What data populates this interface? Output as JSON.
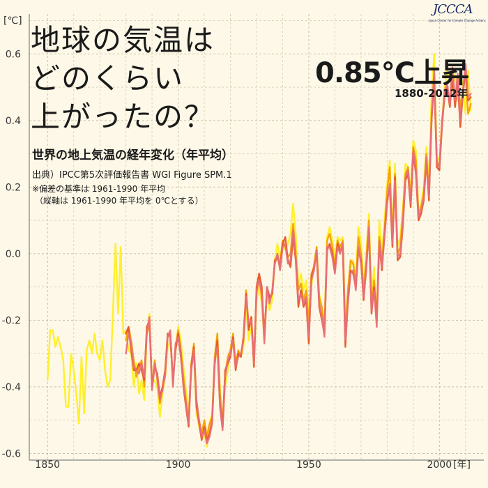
{
  "logo": {
    "text": "JCCCA",
    "sub": "Japan Center for Climate Change Actions"
  },
  "title_lines": [
    "地球の気温は",
    "どのくらい",
    "上がったの？"
  ],
  "headline": "0.85°C上昇",
  "headline_sub": "1880-2012年",
  "subtitle": "世界の地上気温の経年変化（年平均）",
  "source": "出典）IPCC第5次評価報告書 WGI Figure SPM.1",
  "note1": "※偏差の基準は 1961-1990 年平均",
  "note2": "（縦軸は 1961-1990 年平均を 0℃とする）",
  "chart_data": {
    "type": "line",
    "ylabel": "[℃]",
    "xlabel": "[年]",
    "xlim": [
      1843,
      2017
    ],
    "ylim": [
      -0.62,
      0.72
    ],
    "xticks": [
      1850,
      1900,
      1950,
      2000
    ],
    "yticks": [
      -0.6,
      -0.4,
      -0.2,
      0.0,
      0.2,
      0.4,
      0.6
    ],
    "grid": true,
    "colors": [
      "#ffee22",
      "#f5a000",
      "#e85428",
      "#e77079"
    ],
    "series": [
      {
        "color": "#ffee22",
        "x": [
          1850,
          1851,
          1852,
          1853,
          1854,
          1855,
          1856,
          1857,
          1858,
          1859,
          1860,
          1861,
          1862,
          1863,
          1864,
          1865,
          1866,
          1867,
          1868,
          1869,
          1870,
          1871,
          1872,
          1873,
          1874,
          1875,
          1876,
          1877,
          1878,
          1879,
          1880,
          1881,
          1882,
          1883,
          1884,
          1885,
          1886,
          1887,
          1888,
          1889,
          1890,
          1891,
          1892,
          1893,
          1894,
          1895,
          1896,
          1897,
          1898,
          1899,
          1900,
          1901,
          1902,
          1903,
          1904,
          1905,
          1906,
          1907,
          1908,
          1909,
          1910,
          1911,
          1912,
          1913,
          1914,
          1915,
          1916,
          1917,
          1918,
          1919,
          1920,
          1921,
          1922,
          1923,
          1924,
          1925,
          1926,
          1927,
          1928,
          1929,
          1930,
          1931,
          1932,
          1933,
          1934,
          1935,
          1936,
          1937,
          1938,
          1939,
          1940,
          1941,
          1942,
          1943,
          1944,
          1945,
          1946,
          1947,
          1948,
          1949,
          1950,
          1951,
          1952,
          1953,
          1954,
          1955,
          1956,
          1957,
          1958,
          1959,
          1960,
          1961,
          1962,
          1963,
          1964,
          1965,
          1966,
          1967,
          1968,
          1969,
          1970,
          1971,
          1972,
          1973,
          1974,
          1975,
          1976,
          1977,
          1978,
          1979,
          1980,
          1981,
          1982,
          1983,
          1984,
          1985,
          1986,
          1987,
          1988,
          1989,
          1990,
          1991,
          1992,
          1993,
          1994,
          1995,
          1996,
          1997,
          1998,
          1999,
          2000,
          2001,
          2002,
          2003,
          2004,
          2005,
          2006,
          2007,
          2008,
          2009,
          2010,
          2011,
          2012
        ],
        "values": [
          -0.38,
          -0.23,
          -0.23,
          -0.28,
          -0.25,
          -0.28,
          -0.32,
          -0.46,
          -0.46,
          -0.3,
          -0.35,
          -0.42,
          -0.51,
          -0.31,
          -0.48,
          -0.29,
          -0.26,
          -0.3,
          -0.24,
          -0.3,
          -0.32,
          -0.26,
          -0.35,
          -0.4,
          -0.38,
          -0.18,
          0.03,
          -0.18,
          0.02,
          -0.24,
          -0.23,
          -0.29,
          -0.3,
          -0.4,
          -0.33,
          -0.42,
          -0.38,
          -0.44,
          -0.24,
          -0.18,
          -0.39,
          -0.38,
          -0.4,
          -0.49,
          -0.42,
          -0.37,
          -0.28,
          -0.26,
          -0.38,
          -0.29,
          -0.22,
          -0.26,
          -0.34,
          -0.41,
          -0.48,
          -0.34,
          -0.3,
          -0.48,
          -0.52,
          -0.55,
          -0.54,
          -0.58,
          -0.51,
          -0.48,
          -0.34,
          -0.26,
          -0.4,
          -0.5,
          -0.4,
          -0.35,
          -0.29,
          -0.27,
          -0.34,
          -0.3,
          -0.31,
          -0.28,
          -0.16,
          -0.26,
          -0.22,
          -0.34,
          -0.14,
          -0.1,
          -0.15,
          -0.26,
          -0.12,
          -0.17,
          -0.14,
          -0.02,
          0.03,
          -0.02,
          0.04,
          0.01,
          0.03,
          0.06,
          0.15,
          0.06,
          -0.1,
          -0.06,
          -0.11,
          -0.08,
          -0.17,
          -0.1,
          -0.03,
          0.02,
          -0.12,
          -0.17,
          -0.23,
          0.05,
          0.08,
          0.04,
          -0.01,
          0.05,
          0.04,
          0.05,
          -0.21,
          -0.11,
          -0.04,
          -0.02,
          -0.07,
          0.08,
          0.03,
          -0.1,
          0.0,
          0.12,
          -0.13,
          -0.04,
          -0.21,
          0.1,
          0.0,
          0.1,
          0.21,
          0.28,
          0.05,
          0.27,
          0.02,
          0.05,
          0.13,
          0.27,
          0.26,
          0.19,
          0.34,
          0.31,
          0.13,
          0.15,
          0.2,
          0.32,
          0.22,
          0.48,
          0.6,
          0.29,
          0.28,
          0.4,
          0.5,
          0.55,
          0.53,
          0.49,
          0.54,
          0.46,
          0.55,
          0.5,
          0.42,
          0.55,
          0.43
        ]
      },
      {
        "color": "#f5a000",
        "x": [
          1880,
          1881,
          1882,
          1883,
          1884,
          1885,
          1886,
          1887,
          1888,
          1889,
          1890,
          1891,
          1892,
          1893,
          1894,
          1895,
          1896,
          1897,
          1898,
          1899,
          1900,
          1901,
          1902,
          1903,
          1904,
          1905,
          1906,
          1907,
          1908,
          1909,
          1910,
          1911,
          1912,
          1913,
          1914,
          1915,
          1916,
          1917,
          1918,
          1919,
          1920,
          1921,
          1922,
          1923,
          1924,
          1925,
          1926,
          1927,
          1928,
          1929,
          1930,
          1931,
          1932,
          1933,
          1934,
          1935,
          1936,
          1937,
          1938,
          1939,
          1940,
          1941,
          1942,
          1943,
          1944,
          1945,
          1946,
          1947,
          1948,
          1949,
          1950,
          1951,
          1952,
          1953,
          1954,
          1955,
          1956,
          1957,
          1958,
          1959,
          1960,
          1961,
          1962,
          1963,
          1964,
          1965,
          1966,
          1967,
          1968,
          1969,
          1970,
          1971,
          1972,
          1973,
          1974,
          1975,
          1976,
          1977,
          1978,
          1979,
          1980,
          1981,
          1982,
          1983,
          1984,
          1985,
          1986,
          1987,
          1988,
          1989,
          1990,
          1991,
          1992,
          1993,
          1994,
          1995,
          1996,
          1997,
          1998,
          1999,
          2000,
          2001,
          2002,
          2003,
          2004,
          2005,
          2006,
          2007,
          2008,
          2009,
          2010,
          2011,
          2012
        ],
        "values": [
          -0.26,
          -0.22,
          -0.26,
          -0.32,
          -0.37,
          -0.34,
          -0.32,
          -0.4,
          -0.24,
          -0.21,
          -0.4,
          -0.32,
          -0.38,
          -0.45,
          -0.4,
          -0.37,
          -0.24,
          -0.24,
          -0.39,
          -0.28,
          -0.23,
          -0.29,
          -0.37,
          -0.44,
          -0.5,
          -0.33,
          -0.27,
          -0.44,
          -0.5,
          -0.54,
          -0.5,
          -0.55,
          -0.51,
          -0.49,
          -0.31,
          -0.24,
          -0.42,
          -0.52,
          -0.36,
          -0.31,
          -0.29,
          -0.24,
          -0.33,
          -0.29,
          -0.31,
          -0.25,
          -0.11,
          -0.22,
          -0.19,
          -0.32,
          -0.12,
          -0.07,
          -0.13,
          -0.24,
          -0.11,
          -0.14,
          -0.12,
          -0.03,
          -0.01,
          -0.03,
          0.04,
          0.02,
          -0.01,
          0.0,
          0.09,
          0.0,
          -0.11,
          -0.09,
          -0.14,
          -0.11,
          -0.21,
          -0.06,
          -0.04,
          0.02,
          -0.13,
          -0.16,
          -0.22,
          0.04,
          0.06,
          0.02,
          -0.04,
          0.04,
          0.02,
          0.04,
          -0.24,
          -0.11,
          -0.02,
          -0.03,
          -0.09,
          0.05,
          0.0,
          -0.11,
          -0.02,
          0.1,
          -0.16,
          -0.08,
          -0.19,
          0.05,
          -0.02,
          0.07,
          0.19,
          0.26,
          0.04,
          0.24,
          0.0,
          0.02,
          0.12,
          0.24,
          0.26,
          0.16,
          0.32,
          0.28,
          0.12,
          0.14,
          0.18,
          0.3,
          0.18,
          0.42,
          0.52,
          0.28,
          0.26,
          0.4,
          0.47,
          0.49,
          0.46,
          0.52,
          0.46,
          0.53,
          0.44,
          0.49,
          0.54,
          0.42,
          0.45
        ]
      },
      {
        "color": "#e85428",
        "x": [
          1880,
          1881,
          1882,
          1883,
          1884,
          1885,
          1886,
          1887,
          1888,
          1889,
          1890,
          1891,
          1892,
          1893,
          1894,
          1895,
          1896,
          1897,
          1898,
          1899,
          1900,
          1901,
          1902,
          1903,
          1904,
          1905,
          1906,
          1907,
          1908,
          1909,
          1910,
          1911,
          1912,
          1913,
          1914,
          1915,
          1916,
          1917,
          1918,
          1919,
          1920,
          1921,
          1922,
          1923,
          1924,
          1925,
          1926,
          1927,
          1928,
          1929,
          1930,
          1931,
          1932,
          1933,
          1934,
          1935,
          1936,
          1937,
          1938,
          1939,
          1940,
          1941,
          1942,
          1943,
          1944,
          1945,
          1946,
          1947,
          1948,
          1949,
          1950,
          1951,
          1952,
          1953,
          1954,
          1955,
          1956,
          1957,
          1958,
          1959,
          1960,
          1961,
          1962,
          1963,
          1964,
          1965,
          1966,
          1967,
          1968,
          1969,
          1970,
          1971,
          1972,
          1973,
          1974,
          1975,
          1976,
          1977,
          1978,
          1979,
          1980,
          1981,
          1982,
          1983,
          1984,
          1985,
          1986,
          1987,
          1988,
          1989,
          1990,
          1991,
          1992,
          1993,
          1994,
          1995,
          1996,
          1997,
          1998,
          1999,
          2000,
          2001,
          2002,
          2003,
          2004,
          2005,
          2006,
          2007,
          2008,
          2009,
          2010,
          2011,
          2012
        ],
        "values": [
          -0.24,
          -0.22,
          -0.29,
          -0.35,
          -0.35,
          -0.33,
          -0.35,
          -0.38,
          -0.22,
          -0.2,
          -0.4,
          -0.34,
          -0.36,
          -0.43,
          -0.4,
          -0.35,
          -0.24,
          -0.25,
          -0.38,
          -0.29,
          -0.24,
          -0.3,
          -0.4,
          -0.46,
          -0.52,
          -0.34,
          -0.28,
          -0.46,
          -0.51,
          -0.56,
          -0.52,
          -0.56,
          -0.54,
          -0.5,
          -0.33,
          -0.26,
          -0.45,
          -0.52,
          -0.35,
          -0.33,
          -0.31,
          -0.25,
          -0.35,
          -0.3,
          -0.31,
          -0.25,
          -0.12,
          -0.23,
          -0.19,
          -0.34,
          -0.1,
          -0.06,
          -0.1,
          -0.25,
          -0.1,
          -0.13,
          -0.12,
          -0.02,
          -0.01,
          -0.04,
          0.03,
          0.05,
          -0.02,
          -0.04,
          0.05,
          -0.02,
          -0.16,
          -0.11,
          -0.16,
          -0.14,
          -0.27,
          -0.07,
          -0.04,
          0.0,
          -0.16,
          -0.2,
          -0.24,
          0.01,
          0.03,
          0.0,
          -0.05,
          0.03,
          0.01,
          0.02,
          -0.28,
          -0.14,
          -0.05,
          -0.06,
          -0.1,
          0.01,
          -0.02,
          -0.14,
          -0.04,
          0.07,
          -0.18,
          -0.1,
          -0.2,
          0.03,
          -0.05,
          0.06,
          0.16,
          0.2,
          0.02,
          0.23,
          -0.02,
          -0.01,
          0.08,
          0.22,
          0.24,
          0.14,
          0.3,
          0.24,
          0.1,
          0.12,
          0.16,
          0.28,
          0.16,
          0.4,
          0.53,
          0.26,
          0.25,
          0.38,
          0.48,
          0.5,
          0.44,
          0.53,
          0.44,
          0.52,
          0.38,
          0.48,
          0.55,
          0.46,
          0.47
        ]
      },
      {
        "color": "#e77079",
        "x": [
          1880,
          1881,
          1882,
          1883,
          1884,
          1885,
          1886,
          1887,
          1888,
          1889,
          1890,
          1891,
          1892,
          1893,
          1894,
          1895,
          1896,
          1897,
          1898,
          1899,
          1900,
          1901,
          1902,
          1903,
          1904,
          1905,
          1906,
          1907,
          1908,
          1909,
          1910,
          1911,
          1912,
          1913,
          1914,
          1915,
          1916,
          1917,
          1918,
          1919,
          1920,
          1921,
          1922,
          1923,
          1924,
          1925,
          1926,
          1927,
          1928,
          1929,
          1930,
          1931,
          1932,
          1933,
          1934,
          1935,
          1936,
          1937,
          1938,
          1939,
          1940,
          1941,
          1942,
          1943,
          1944,
          1945,
          1946,
          1947,
          1948,
          1949,
          1950,
          1951,
          1952,
          1953,
          1954,
          1955,
          1956,
          1957,
          1958,
          1959,
          1960,
          1961,
          1962,
          1963,
          1964,
          1965,
          1966,
          1967,
          1968,
          1969,
          1970,
          1971,
          1972,
          1973,
          1974,
          1975,
          1976,
          1977,
          1978,
          1979,
          1980,
          1981,
          1982,
          1983,
          1984,
          1985,
          1986,
          1987,
          1988,
          1989,
          1990,
          1991,
          1992,
          1993,
          1994,
          1995,
          1996,
          1997,
          1998,
          1999,
          2000,
          2001,
          2002,
          2003,
          2004,
          2005,
          2006,
          2007,
          2008,
          2009,
          2010,
          2011,
          2012
        ],
        "values": [
          -0.3,
          -0.24,
          -0.27,
          -0.34,
          -0.35,
          -0.36,
          -0.33,
          -0.37,
          -0.24,
          -0.19,
          -0.41,
          -0.33,
          -0.37,
          -0.44,
          -0.41,
          -0.36,
          -0.25,
          -0.23,
          -0.4,
          -0.27,
          -0.25,
          -0.31,
          -0.39,
          -0.45,
          -0.51,
          -0.35,
          -0.29,
          -0.44,
          -0.5,
          -0.55,
          -0.53,
          -0.57,
          -0.55,
          -0.51,
          -0.32,
          -0.28,
          -0.46,
          -0.53,
          -0.37,
          -0.32,
          -0.3,
          -0.26,
          -0.34,
          -0.31,
          -0.3,
          -0.26,
          -0.13,
          -0.21,
          -0.2,
          -0.33,
          -0.11,
          -0.08,
          -0.12,
          -0.27,
          -0.1,
          -0.15,
          -0.11,
          -0.03,
          0.0,
          -0.05,
          0.02,
          0.03,
          -0.03,
          -0.02,
          0.07,
          -0.01,
          -0.14,
          -0.12,
          -0.15,
          -0.13,
          -0.25,
          -0.08,
          -0.05,
          0.01,
          -0.15,
          -0.19,
          -0.25,
          0.02,
          0.02,
          -0.01,
          -0.06,
          0.02,
          0.0,
          0.03,
          -0.26,
          -0.15,
          -0.06,
          -0.05,
          -0.11,
          0.02,
          -0.03,
          -0.13,
          -0.05,
          0.08,
          -0.17,
          -0.11,
          -0.22,
          0.04,
          -0.04,
          0.05,
          0.15,
          0.21,
          0.03,
          0.22,
          -0.01,
          0.0,
          0.09,
          0.23,
          0.25,
          0.15,
          0.31,
          0.25,
          0.11,
          0.13,
          0.17,
          0.29,
          0.17,
          0.41,
          0.55,
          0.27,
          0.26,
          0.39,
          0.49,
          0.51,
          0.45,
          0.56,
          0.46,
          0.54,
          0.4,
          0.49,
          0.57,
          0.47,
          0.48
        ]
      }
    ]
  }
}
